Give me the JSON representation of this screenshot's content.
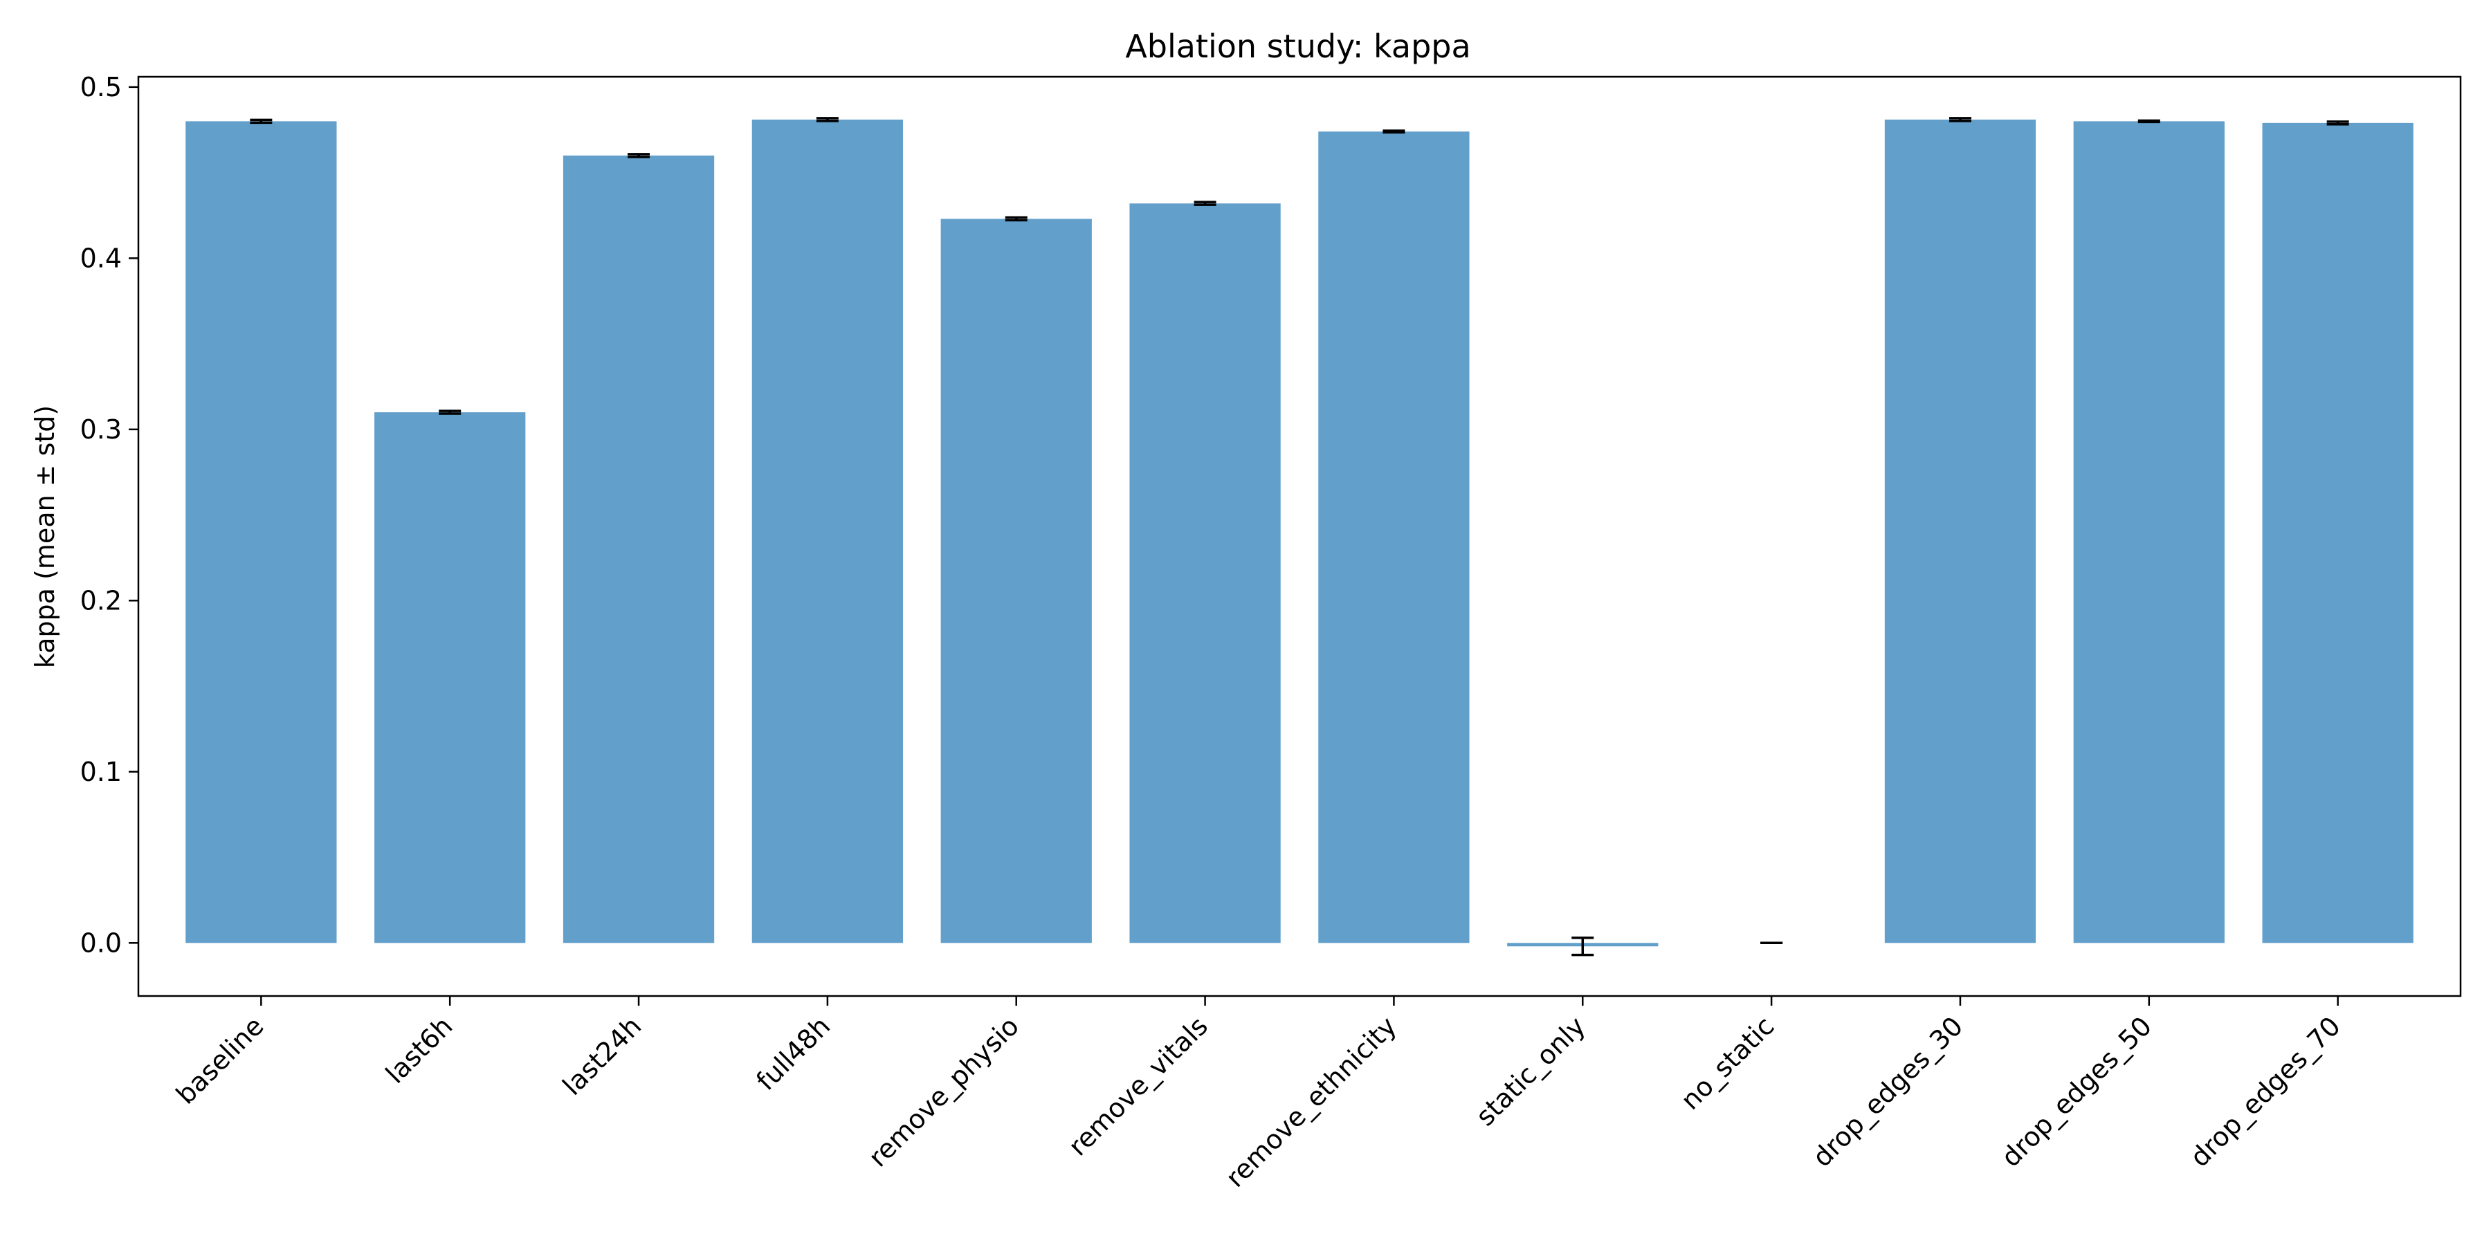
{
  "chart_data": {
    "type": "bar",
    "title": "Ablation study: kappa",
    "xlabel": "",
    "ylabel": "kappa (mean ± std)",
    "ylim": [
      -0.031,
      0.506
    ],
    "yticks": [
      0.0,
      0.1,
      0.2,
      0.3,
      0.4,
      0.5
    ],
    "ytick_labels": [
      "0.0",
      "0.1",
      "0.2",
      "0.3",
      "0.4",
      "0.5"
    ],
    "grid": false,
    "legend": "none",
    "bar_color": "#62a0cb",
    "errorbar_color": "#000000",
    "categories": [
      "baseline",
      "last6h",
      "last24h",
      "full48h",
      "remove_physio",
      "remove_vitals",
      "remove_ethnicity",
      "static_only",
      "no_static",
      "drop_edges_30",
      "drop_edges_50",
      "drop_edges_70"
    ],
    "values": [
      0.48,
      0.31,
      0.46,
      0.481,
      0.423,
      0.432,
      0.474,
      -0.002,
      0.0,
      0.481,
      0.48,
      0.479
    ],
    "errors": [
      0.0008,
      0.0008,
      0.0008,
      0.0008,
      0.0008,
      0.0008,
      0.0005,
      0.005,
      0.0,
      0.0008,
      0.0004,
      0.0008
    ]
  }
}
